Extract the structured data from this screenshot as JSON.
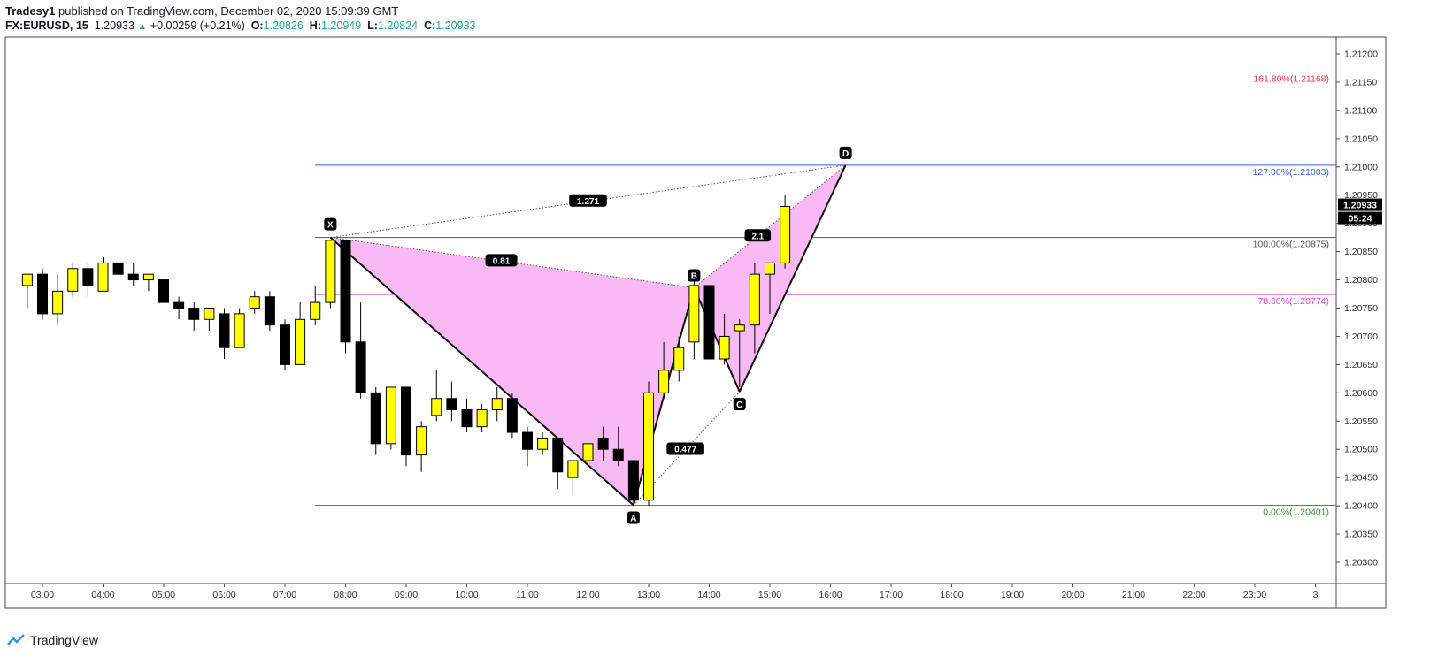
{
  "header": {
    "author": "Tradesy1",
    "published_text": "published on TradingView.com, December 02, 2020 15:09:39 GMT",
    "symbol": "FX:EURUSD, 15",
    "last": "1.20933",
    "change": "+0.00259 (+0.21%)",
    "open_label": "O:",
    "open": "1.20826",
    "high_label": "H:",
    "high": "1.20949",
    "low_label": "L:",
    "low": "1.20824",
    "close_label": "C:",
    "close": "1.20933"
  },
  "footer": {
    "brand": "TradingView"
  },
  "colors": {
    "bull": "#ffff00",
    "bear": "#000000",
    "pattern_fill": "#f9b9f5",
    "fib_1618": "#f23645",
    "fib_1270": "#2962ff",
    "fib_1000": "#555555",
    "fib_786": "#e040d8",
    "fib_000": "#2ba02b"
  },
  "chart_data": {
    "type": "candlestick",
    "title": "FX:EURUSD, 15",
    "ylim": [
      1.2025,
      1.2123
    ],
    "y_ticks": [
      "1.21200",
      "1.21150",
      "1.21100",
      "1.21050",
      "1.21000",
      "1.20950",
      "1.20900",
      "1.20850",
      "1.20800",
      "1.20750",
      "1.20700",
      "1.20650",
      "1.20600",
      "1.20550",
      "1.20500",
      "1.20450",
      "1.20400",
      "1.20350",
      "1.20300"
    ],
    "x_ticks": [
      "03:00",
      "04:00",
      "05:00",
      "06:00",
      "07:00",
      "08:00",
      "09:00",
      "10:00",
      "11:00",
      "12:00",
      "13:00",
      "14:00",
      "15:00",
      "16:00",
      "17:00",
      "18:00",
      "19:00",
      "20:00",
      "21:00",
      "22:00",
      "23:00",
      "3"
    ],
    "price_label": "1.20933",
    "countdown_label": "05:24",
    "candles": [
      {
        "t": "02:45",
        "o": 1.2079,
        "h": 1.2081,
        "l": 1.2075,
        "c": 1.2081
      },
      {
        "t": "03:00",
        "o": 1.2081,
        "h": 1.2082,
        "l": 1.2073,
        "c": 1.2074
      },
      {
        "t": "03:15",
        "o": 1.2074,
        "h": 1.2081,
        "l": 1.2072,
        "c": 1.2078
      },
      {
        "t": "03:30",
        "o": 1.2078,
        "h": 1.2083,
        "l": 1.2077,
        "c": 1.2082
      },
      {
        "t": "03:45",
        "o": 1.2082,
        "h": 1.2083,
        "l": 1.2077,
        "c": 1.2079
      },
      {
        "t": "04:00",
        "o": 1.2078,
        "h": 1.2084,
        "l": 1.2078,
        "c": 1.2083
      },
      {
        "t": "04:15",
        "o": 1.2083,
        "h": 1.2083,
        "l": 1.2081,
        "c": 1.2081
      },
      {
        "t": "04:30",
        "o": 1.2081,
        "h": 1.2083,
        "l": 1.2079,
        "c": 1.208
      },
      {
        "t": "04:45",
        "o": 1.208,
        "h": 1.2081,
        "l": 1.2078,
        "c": 1.2081
      },
      {
        "t": "05:00",
        "o": 1.208,
        "h": 1.208,
        "l": 1.2076,
        "c": 1.2076
      },
      {
        "t": "05:15",
        "o": 1.2076,
        "h": 1.2077,
        "l": 1.2073,
        "c": 1.2075
      },
      {
        "t": "05:30",
        "o": 1.2075,
        "h": 1.2076,
        "l": 1.2071,
        "c": 1.2073
      },
      {
        "t": "05:45",
        "o": 1.2073,
        "h": 1.2075,
        "l": 1.2071,
        "c": 1.2075
      },
      {
        "t": "06:00",
        "o": 1.2074,
        "h": 1.2075,
        "l": 1.2066,
        "c": 1.2068
      },
      {
        "t": "06:15",
        "o": 1.2068,
        "h": 1.2075,
        "l": 1.2068,
        "c": 1.2074
      },
      {
        "t": "06:30",
        "o": 1.2075,
        "h": 1.2078,
        "l": 1.2074,
        "c": 1.2077
      },
      {
        "t": "06:45",
        "o": 1.2077,
        "h": 1.2078,
        "l": 1.2071,
        "c": 1.2072
      },
      {
        "t": "07:00",
        "o": 1.2072,
        "h": 1.2073,
        "l": 1.2064,
        "c": 1.2065
      },
      {
        "t": "07:15",
        "o": 1.2065,
        "h": 1.2076,
        "l": 1.2065,
        "c": 1.2073
      },
      {
        "t": "07:30",
        "o": 1.2073,
        "h": 1.2079,
        "l": 1.2072,
        "c": 1.2076
      },
      {
        "t": "07:45",
        "o": 1.2076,
        "h": 1.2087,
        "l": 1.2075,
        "c": 1.2087
      },
      {
        "t": "08:00",
        "o": 1.2087,
        "h": 1.2087,
        "l": 1.2067,
        "c": 1.2069
      },
      {
        "t": "08:15",
        "o": 1.2069,
        "h": 1.2076,
        "l": 1.2059,
        "c": 1.206
      },
      {
        "t": "08:30",
        "o": 1.206,
        "h": 1.2061,
        "l": 1.2049,
        "c": 1.2051
      },
      {
        "t": "08:45",
        "o": 1.2051,
        "h": 1.2061,
        "l": 1.205,
        "c": 1.2061
      },
      {
        "t": "09:00",
        "o": 1.2061,
        "h": 1.2061,
        "l": 1.2047,
        "c": 1.2049
      },
      {
        "t": "09:15",
        "o": 1.2049,
        "h": 1.2055,
        "l": 1.2046,
        "c": 1.2054
      },
      {
        "t": "09:30",
        "o": 1.2056,
        "h": 1.2064,
        "l": 1.2055,
        "c": 1.2059
      },
      {
        "t": "09:45",
        "o": 1.2059,
        "h": 1.2062,
        "l": 1.2055,
        "c": 1.2057
      },
      {
        "t": "10:00",
        "o": 1.2057,
        "h": 1.2059,
        "l": 1.2053,
        "c": 1.2054
      },
      {
        "t": "10:15",
        "o": 1.2054,
        "h": 1.2058,
        "l": 1.2053,
        "c": 1.2057
      },
      {
        "t": "10:30",
        "o": 1.2057,
        "h": 1.2061,
        "l": 1.2055,
        "c": 1.2059
      },
      {
        "t": "10:45",
        "o": 1.2059,
        "h": 1.206,
        "l": 1.2052,
        "c": 1.2053
      },
      {
        "t": "11:00",
        "o": 1.2053,
        "h": 1.2054,
        "l": 1.2047,
        "c": 1.205
      },
      {
        "t": "11:15",
        "o": 1.205,
        "h": 1.2053,
        "l": 1.2049,
        "c": 1.2052
      },
      {
        "t": "11:30",
        "o": 1.2052,
        "h": 1.2052,
        "l": 1.2043,
        "c": 1.2046
      },
      {
        "t": "11:45",
        "o": 1.2045,
        "h": 1.2048,
        "l": 1.2042,
        "c": 1.2048
      },
      {
        "t": "12:00",
        "o": 1.2048,
        "h": 1.2052,
        "l": 1.2046,
        "c": 1.2051
      },
      {
        "t": "12:15",
        "o": 1.2052,
        "h": 1.2054,
        "l": 1.2048,
        "c": 1.205
      },
      {
        "t": "12:30",
        "o": 1.205,
        "h": 1.2054,
        "l": 1.2047,
        "c": 1.2048
      },
      {
        "t": "12:45",
        "o": 1.2048,
        "h": 1.2048,
        "l": 1.204,
        "c": 1.2041
      },
      {
        "t": "13:00",
        "o": 1.2041,
        "h": 1.2062,
        "l": 1.204,
        "c": 1.206
      },
      {
        "t": "13:15",
        "o": 1.206,
        "h": 1.2069,
        "l": 1.2059,
        "c": 1.2064
      },
      {
        "t": "13:30",
        "o": 1.2064,
        "h": 1.207,
        "l": 1.2062,
        "c": 1.2068
      },
      {
        "t": "13:45",
        "o": 1.2069,
        "h": 1.208,
        "l": 1.2066,
        "c": 1.2079
      },
      {
        "t": "14:00",
        "o": 1.2079,
        "h": 1.2079,
        "l": 1.2066,
        "c": 1.2066
      },
      {
        "t": "14:15",
        "o": 1.2066,
        "h": 1.2074,
        "l": 1.2065,
        "c": 1.207
      },
      {
        "t": "14:30",
        "o": 1.2071,
        "h": 1.2073,
        "l": 1.2061,
        "c": 1.2072
      },
      {
        "t": "14:45",
        "o": 1.2072,
        "h": 1.2083,
        "l": 1.2067,
        "c": 1.2081
      },
      {
        "t": "15:00",
        "o": 1.2081,
        "h": 1.2083,
        "l": 1.2074,
        "c": 1.2083
      },
      {
        "t": "15:15",
        "o": 1.2083,
        "h": 1.2095,
        "l": 1.2082,
        "c": 1.2093
      }
    ],
    "fib_levels": [
      {
        "label": "161.80%(1.21168)",
        "value": 1.21168,
        "color": "#f23645"
      },
      {
        "label": "127.00%(1.21003)",
        "value": 1.21003,
        "color": "#2962ff"
      },
      {
        "label": "100.00%(1.20875)",
        "value": 1.20875,
        "color": "#555555"
      },
      {
        "label": "78.60%(1.20774)",
        "value": 1.20774,
        "color": "#e040d8"
      },
      {
        "label": "0.00%(1.20401)",
        "value": 1.20401,
        "color": "#2ba02b"
      }
    ],
    "harmonic_pattern": {
      "points": [
        {
          "name": "X",
          "t": "07:45",
          "price": 1.20875
        },
        {
          "name": "A",
          "t": "12:45",
          "price": 1.20401
        },
        {
          "name": "B",
          "t": "13:45",
          "price": 1.20786
        },
        {
          "name": "C",
          "t": "14:30",
          "price": 1.20602
        },
        {
          "name": "D",
          "t": "16:15",
          "price": 1.21003
        }
      ],
      "ratios": [
        {
          "label": "0.81",
          "between": "XA-AB"
        },
        {
          "label": "0.477",
          "between": "AB-BC"
        },
        {
          "label": "2.1",
          "between": "BC-CD"
        },
        {
          "label": "1.271",
          "between": "XA-AD"
        }
      ]
    }
  }
}
